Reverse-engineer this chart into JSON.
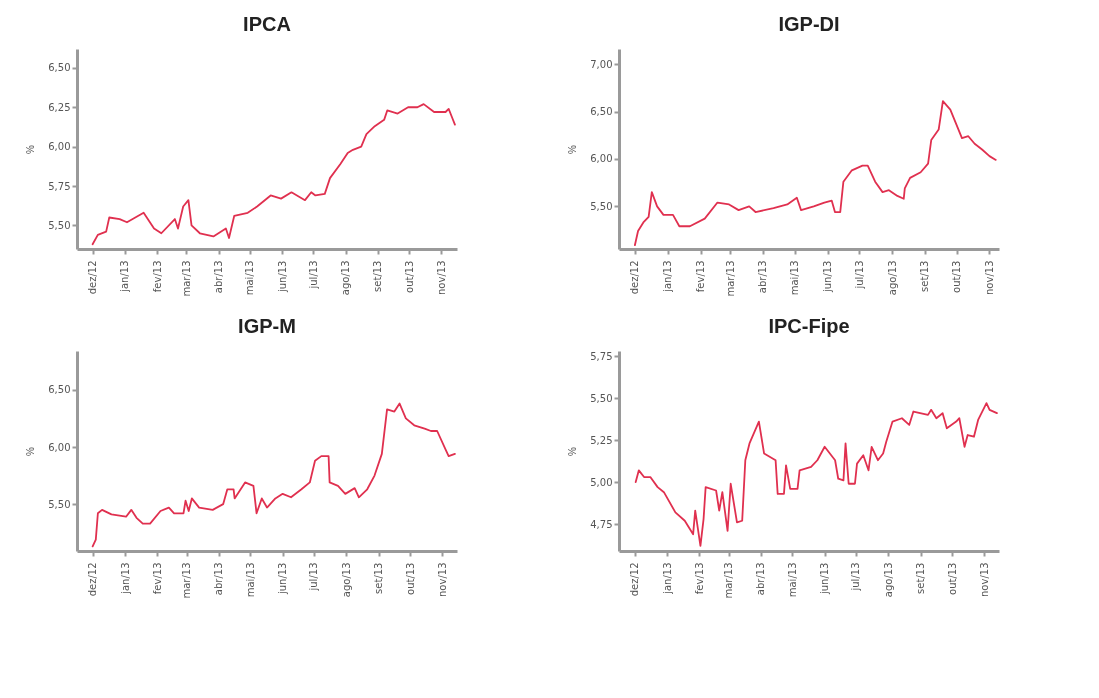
{
  "chart_data": [
    {
      "type": "line",
      "title": "IPCA",
      "ylabel": "%",
      "xlim": [
        "2012-11-16",
        "2013-11-16"
      ],
      "ylim": [
        5.35,
        6.62
      ],
      "xticks": [
        {
          "value": "2012-12-01",
          "label": "dez/12"
        },
        {
          "value": "2013-01-01",
          "label": "jan/13"
        },
        {
          "value": "2013-02-01",
          "label": "fev/13"
        },
        {
          "value": "2013-03-01",
          "label": "mar/13"
        },
        {
          "value": "2013-04-01",
          "label": "abr/13"
        },
        {
          "value": "2013-05-01",
          "label": "mai/13"
        },
        {
          "value": "2013-06-01",
          "label": "jun/13"
        },
        {
          "value": "2013-07-01",
          "label": "jul/13"
        },
        {
          "value": "2013-08-01",
          "label": "ago/13"
        },
        {
          "value": "2013-09-01",
          "label": "set/13"
        },
        {
          "value": "2013-10-01",
          "label": "out/13"
        },
        {
          "value": "2013-11-01",
          "label": "nov/13"
        }
      ],
      "yticks": [
        {
          "value": 5.5,
          "label": "5,50"
        },
        {
          "value": 5.75,
          "label": "5,75"
        },
        {
          "value": 6,
          "label": "6,00"
        },
        {
          "value": 6.25,
          "label": "6,25"
        },
        {
          "value": 6.5,
          "label": "6,50"
        }
      ],
      "grid": false,
      "marker": "none",
      "line_style": "solid",
      "x": [
        "2012-12-01",
        "2012-12-06",
        "2012-12-14",
        "2012-12-17",
        "2012-12-27",
        "2013-01-03",
        "2013-01-19",
        "2013-01-29",
        "2013-02-05",
        "2013-02-18",
        "2013-02-21",
        "2013-02-26",
        "2013-03-03",
        "2013-03-06",
        "2013-03-14",
        "2013-03-27",
        "2013-04-08",
        "2013-04-11",
        "2013-04-16",
        "2013-04-29",
        "2013-05-08",
        "2013-05-21",
        "2013-05-31",
        "2013-06-10",
        "2013-06-23",
        "2013-06-29",
        "2013-07-03",
        "2013-07-12",
        "2013-07-17",
        "2013-07-27",
        "2013-08-03",
        "2013-08-08",
        "2013-08-16",
        "2013-08-21",
        "2013-08-29",
        "2013-09-07",
        "2013-09-10",
        "2013-09-20",
        "2013-09-30",
        "2013-10-09",
        "2013-10-15",
        "2013-10-25",
        "2013-11-05",
        "2013-11-08",
        "2013-11-11",
        "2013-11-14"
      ],
      "series": [
        {
          "color": "#e0304f",
          "values": [
            5.38,
            5.44,
            5.46,
            5.55,
            5.54,
            5.52,
            5.58,
            5.48,
            5.45,
            5.54,
            5.48,
            5.62,
            5.66,
            5.5,
            5.45,
            5.43,
            5.48,
            5.42,
            5.56,
            5.58,
            5.62,
            5.69,
            5.67,
            5.71,
            5.66,
            5.71,
            5.69,
            5.7,
            5.8,
            5.89,
            5.96,
            5.98,
            6,
            6.08,
            6.13,
            6.17,
            6.23,
            6.21,
            6.25,
            6.25,
            6.27,
            6.22,
            6.22,
            6.24,
            6.19,
            6.14
          ]
        }
      ]
    },
    {
      "type": "line",
      "title": "IGP-DI",
      "ylabel": "%",
      "xlim": [
        "2012-11-16",
        "2013-11-10"
      ],
      "ylim": [
        5.05,
        7.16
      ],
      "xticks": [
        {
          "value": "2012-12-01",
          "label": "dez/12"
        },
        {
          "value": "2013-01-01",
          "label": "jan/13"
        },
        {
          "value": "2013-02-01",
          "label": "fev/13"
        },
        {
          "value": "2013-03-01",
          "label": "mar/13"
        },
        {
          "value": "2013-04-01",
          "label": "abr/13"
        },
        {
          "value": "2013-05-01",
          "label": "mai/13"
        },
        {
          "value": "2013-06-01",
          "label": "jun/13"
        },
        {
          "value": "2013-07-01",
          "label": "jul/13"
        },
        {
          "value": "2013-08-01",
          "label": "ago/13"
        },
        {
          "value": "2013-09-01",
          "label": "set/13"
        },
        {
          "value": "2013-10-01",
          "label": "out/13"
        },
        {
          "value": "2013-11-01",
          "label": "nov/13"
        }
      ],
      "yticks": [
        {
          "value": 5.5,
          "label": "5,50"
        },
        {
          "value": 6,
          "label": "6,00"
        },
        {
          "value": 6.5,
          "label": "6,50"
        },
        {
          "value": 7,
          "label": "7,00"
        }
      ],
      "grid": false,
      "marker": "none",
      "line_style": "solid",
      "x": [
        "2012-12-01",
        "2012-12-04",
        "2012-12-09",
        "2012-12-14",
        "2012-12-17",
        "2012-12-22",
        "2012-12-28",
        "2013-01-06",
        "2013-01-12",
        "2013-01-22",
        "2013-02-05",
        "2013-02-17",
        "2013-02-28",
        "2013-03-09",
        "2013-03-19",
        "2013-03-25",
        "2013-04-11",
        "2013-04-24",
        "2013-05-03",
        "2013-05-07",
        "2013-05-19",
        "2013-05-29",
        "2013-06-05",
        "2013-06-08",
        "2013-06-13",
        "2013-06-16",
        "2013-06-24",
        "2013-07-04",
        "2013-07-09",
        "2013-07-16",
        "2013-07-23",
        "2013-07-29",
        "2013-08-06",
        "2013-08-12",
        "2013-08-13",
        "2013-08-18",
        "2013-08-28",
        "2013-09-04",
        "2013-09-07",
        "2013-09-14",
        "2013-09-18",
        "2013-09-25",
        "2013-10-06",
        "2013-10-12",
        "2013-10-18",
        "2013-10-25",
        "2013-11-01",
        "2013-11-07"
      ],
      "series": [
        {
          "color": "#e0304f",
          "values": [
            5.09,
            5.24,
            5.33,
            5.39,
            5.65,
            5.5,
            5.41,
            5.41,
            5.29,
            5.29,
            5.37,
            5.54,
            5.52,
            5.46,
            5.5,
            5.44,
            5.48,
            5.52,
            5.59,
            5.46,
            5.5,
            5.54,
            5.56,
            5.44,
            5.44,
            5.76,
            5.88,
            5.93,
            5.93,
            5.76,
            5.65,
            5.67,
            5.61,
            5.58,
            5.69,
            5.8,
            5.86,
            5.95,
            6.2,
            6.31,
            6.61,
            6.52,
            6.22,
            6.24,
            6.16,
            6.1,
            6.03,
            5.99
          ]
        }
      ]
    },
    {
      "type": "line",
      "title": "IGP-M",
      "ylabel": "%",
      "xlim": [
        "2012-11-16",
        "2013-11-15"
      ],
      "ylim": [
        5.09,
        6.84
      ],
      "xticks": [
        {
          "value": "2012-12-01",
          "label": "dez/12"
        },
        {
          "value": "2013-01-01",
          "label": "jan/13"
        },
        {
          "value": "2013-02-01",
          "label": "fev/13"
        },
        {
          "value": "2013-03-01",
          "label": "mar/13"
        },
        {
          "value": "2013-04-01",
          "label": "abr/13"
        },
        {
          "value": "2013-05-01",
          "label": "mai/13"
        },
        {
          "value": "2013-06-01",
          "label": "jun/13"
        },
        {
          "value": "2013-07-01",
          "label": "jul/13"
        },
        {
          "value": "2013-08-01",
          "label": "ago/13"
        },
        {
          "value": "2013-09-01",
          "label": "set/13"
        },
        {
          "value": "2013-10-01",
          "label": "out/13"
        },
        {
          "value": "2013-11-01",
          "label": "nov/13"
        }
      ],
      "yticks": [
        {
          "value": 5.5,
          "label": "5,50"
        },
        {
          "value": 6,
          "label": "6,00"
        },
        {
          "value": 6.5,
          "label": "6,50"
        }
      ],
      "grid": false,
      "marker": "none",
      "line_style": "solid",
      "x": [
        "2012-12-01",
        "2012-12-04",
        "2012-12-06",
        "2012-12-10",
        "2012-12-19",
        "2013-01-02",
        "2013-01-07",
        "2013-01-12",
        "2013-01-18",
        "2013-01-25",
        "2013-02-04",
        "2013-02-12",
        "2013-02-17",
        "2013-02-26",
        "2013-02-28",
        "2013-03-03",
        "2013-03-06",
        "2013-03-13",
        "2013-03-26",
        "2013-04-05",
        "2013-04-09",
        "2013-04-15",
        "2013-04-16",
        "2013-04-26",
        "2013-05-04",
        "2013-05-07",
        "2013-05-12",
        "2013-05-17",
        "2013-05-25",
        "2013-06-01",
        "2013-06-09",
        "2013-06-19",
        "2013-06-27",
        "2013-07-02",
        "2013-07-08",
        "2013-07-15",
        "2013-07-16",
        "2013-07-24",
        "2013-07-31",
        "2013-08-09",
        "2013-08-13",
        "2013-08-21",
        "2013-08-28",
        "2013-09-04",
        "2013-09-09",
        "2013-09-16",
        "2013-09-21",
        "2013-09-27",
        "2013-10-05",
        "2013-10-15",
        "2013-10-21",
        "2013-10-27",
        "2013-11-04",
        "2013-11-07",
        "2013-11-13"
      ],
      "series": [
        {
          "color": "#e0304f",
          "values": [
            5.13,
            5.19,
            5.42,
            5.45,
            5.41,
            5.39,
            5.45,
            5.38,
            5.33,
            5.33,
            5.44,
            5.47,
            5.42,
            5.42,
            5.53,
            5.44,
            5.55,
            5.47,
            5.45,
            5.5,
            5.63,
            5.63,
            5.55,
            5.69,
            5.66,
            5.42,
            5.55,
            5.47,
            5.55,
            5.59,
            5.56,
            5.63,
            5.69,
            5.88,
            5.92,
            5.92,
            5.69,
            5.66,
            5.59,
            5.64,
            5.56,
            5.63,
            5.75,
            5.94,
            6.33,
            6.31,
            6.38,
            6.25,
            6.19,
            6.16,
            6.14,
            6.14,
            5.98,
            5.92,
            5.94
          ]
        }
      ]
    },
    {
      "type": "line",
      "title": "IPC-Fipe",
      "ylabel": "%",
      "xlim": [
        "2012-11-16",
        "2013-11-15"
      ],
      "ylim": [
        4.59,
        5.78
      ],
      "xticks": [
        {
          "value": "2012-12-01",
          "label": "dez/12"
        },
        {
          "value": "2013-01-01",
          "label": "jan/13"
        },
        {
          "value": "2013-02-01",
          "label": "fev/13"
        },
        {
          "value": "2013-03-01",
          "label": "mar/13"
        },
        {
          "value": "2013-04-01",
          "label": "abr/13"
        },
        {
          "value": "2013-05-01",
          "label": "mai/13"
        },
        {
          "value": "2013-06-01",
          "label": "jun/13"
        },
        {
          "value": "2013-07-01",
          "label": "jul/13"
        },
        {
          "value": "2013-08-01",
          "label": "ago/13"
        },
        {
          "value": "2013-09-01",
          "label": "set/13"
        },
        {
          "value": "2013-10-01",
          "label": "out/13"
        },
        {
          "value": "2013-11-01",
          "label": "nov/13"
        }
      ],
      "yticks": [
        {
          "value": 4.75,
          "label": "4,75"
        },
        {
          "value": 5,
          "label": "5,00"
        },
        {
          "value": 5.25,
          "label": "5,25"
        },
        {
          "value": 5.5,
          "label": "5,50"
        },
        {
          "value": 5.75,
          "label": "5,75"
        }
      ],
      "grid": false,
      "marker": "none",
      "line_style": "solid",
      "x": [
        "2012-12-02",
        "2012-12-05",
        "2012-12-10",
        "2012-12-16",
        "2012-12-23",
        "2012-12-29",
        "2013-01-09",
        "2013-01-18",
        "2013-01-26",
        "2013-01-28",
        "2013-02-02",
        "2013-02-05",
        "2013-02-07",
        "2013-02-17",
        "2013-02-20",
        "2013-02-23",
        "2013-02-28",
        "2013-03-03",
        "2013-03-09",
        "2013-03-14",
        "2013-03-17",
        "2013-03-21",
        "2013-03-30",
        "2013-04-04",
        "2013-04-15",
        "2013-04-17",
        "2013-04-23",
        "2013-04-25",
        "2013-04-29",
        "2013-05-06",
        "2013-05-08",
        "2013-05-19",
        "2013-05-25",
        "2013-06-01",
        "2013-06-11",
        "2013-06-14",
        "2013-06-19",
        "2013-06-21",
        "2013-06-24",
        "2013-06-30",
        "2013-07-02",
        "2013-07-08",
        "2013-07-13",
        "2013-07-16",
        "2013-07-22",
        "2013-07-27",
        "2013-07-30",
        "2013-08-05",
        "2013-08-14",
        "2013-08-21",
        "2013-08-25",
        "2013-09-08",
        "2013-09-11",
        "2013-09-16",
        "2013-09-22",
        "2013-09-26",
        "2013-10-05",
        "2013-10-08",
        "2013-10-13",
        "2013-10-16",
        "2013-10-22",
        "2013-10-26",
        "2013-11-03",
        "2013-11-06",
        "2013-11-13"
      ],
      "series": [
        {
          "color": "#e0304f",
          "values": [
            5,
            5.07,
            5.03,
            5.03,
            4.97,
            4.94,
            4.82,
            4.77,
            4.69,
            4.83,
            4.62,
            4.78,
            4.97,
            4.95,
            4.83,
            4.94,
            4.71,
            4.99,
            4.76,
            4.77,
            5.13,
            5.23,
            5.36,
            5.17,
            5.13,
            4.93,
            4.93,
            5.1,
            4.96,
            4.96,
            5.07,
            5.09,
            5.13,
            5.21,
            5.13,
            5.02,
            5.01,
            5.23,
            4.99,
            4.99,
            5.11,
            5.16,
            5.07,
            5.21,
            5.13,
            5.17,
            5.24,
            5.36,
            5.38,
            5.34,
            5.42,
            5.4,
            5.43,
            5.38,
            5.41,
            5.32,
            5.36,
            5.38,
            5.21,
            5.28,
            5.27,
            5.37,
            5.47,
            5.43,
            5.41
          ]
        }
      ]
    }
  ]
}
